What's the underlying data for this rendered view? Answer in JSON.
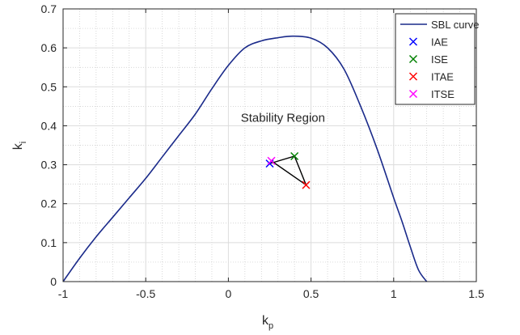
{
  "chart_data": {
    "type": "scatter",
    "xlabel": "k",
    "xlabel_sub": "p",
    "ylabel": "k",
    "ylabel_sub": "i",
    "xlim": [
      -1,
      1.5
    ],
    "ylim": [
      0,
      0.7
    ],
    "xticks": [
      "-1",
      "-0.5",
      "0",
      "0.5",
      "1",
      "1.5"
    ],
    "yticks": [
      "0",
      "0.1",
      "0.2",
      "0.3",
      "0.4",
      "0.5",
      "0.6",
      "0.7"
    ],
    "grid": true,
    "minor_grid": true,
    "legend_position": "top-right",
    "annotation": "Stability Region",
    "annotation_pos": {
      "x": 0.33,
      "y": 0.41
    },
    "series": [
      {
        "name": "SBL curve",
        "kind": "line",
        "color": "#1a2a8a",
        "x": [
          -1.0,
          -0.9,
          -0.8,
          -0.7,
          -0.6,
          -0.5,
          -0.4,
          -0.3,
          -0.2,
          -0.1,
          0.0,
          0.1,
          0.2,
          0.3,
          0.39,
          0.5,
          0.6,
          0.7,
          0.8,
          0.9,
          1.0,
          1.05,
          1.1,
          1.15,
          1.2
        ],
        "y": [
          0.0,
          0.06,
          0.115,
          0.165,
          0.215,
          0.265,
          0.32,
          0.375,
          0.43,
          0.495,
          0.555,
          0.6,
          0.618,
          0.626,
          0.63,
          0.625,
          0.6,
          0.545,
          0.45,
          0.34,
          0.215,
          0.155,
          0.09,
          0.03,
          0.0
        ]
      },
      {
        "name": "IAE",
        "kind": "marker",
        "color": "#0000ff",
        "x": [
          0.25
        ],
        "y": [
          0.303
        ]
      },
      {
        "name": "ISE",
        "kind": "marker",
        "color": "#008000",
        "x": [
          0.4
        ],
        "y": [
          0.322
        ]
      },
      {
        "name": "ITAE",
        "kind": "marker",
        "color": "#ff0000",
        "x": [
          0.47
        ],
        "y": [
          0.248
        ]
      },
      {
        "name": "ITSE",
        "kind": "marker",
        "color": "#ff00ff",
        "x": [
          0.26
        ],
        "y": [
          0.31
        ]
      }
    ],
    "connector": {
      "color": "#000000",
      "x": [
        0.25,
        0.4,
        0.47,
        0.26
      ],
      "y": [
        0.303,
        0.322,
        0.248,
        0.31
      ]
    }
  }
}
